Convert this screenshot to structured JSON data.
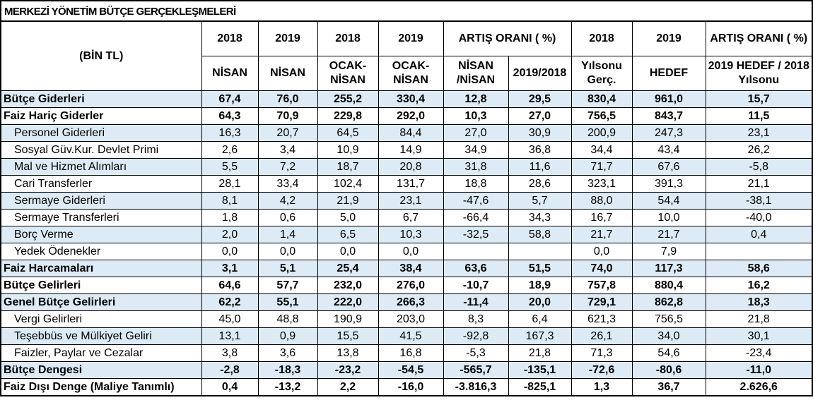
{
  "title": "MERKEZİ YÖNETİM BÜTÇE GERÇEKLEŞMELERİ",
  "table": {
    "unit_label": "(BİN TL)",
    "header_top": [
      "2018",
      "2019",
      "2018",
      "2019",
      "ARTIŞ ORANI ( %)",
      "2018",
      "2019",
      "ARTIŞ ORANI ( %)"
    ],
    "header_bottom": [
      "NİSAN",
      "NİSAN",
      "OCAK-NİSAN",
      "OCAK-NİSAN",
      "NİSAN /NİSAN",
      "2019/2018",
      "Yılsonu Gerç.",
      "HEDEF",
      "2019 HEDEF / 2018 Yılsonu"
    ],
    "rows": [
      [
        "Bütçe Giderleri",
        "67,4",
        "76,0",
        "255,2",
        "330,4",
        "12,8",
        "29,5",
        "830,4",
        "961,0",
        "15,7"
      ],
      [
        "Faiz Hariç Giderler",
        "64,3",
        "70,9",
        "229,8",
        "292,0",
        "10,3",
        "27,0",
        "756,5",
        "843,7",
        "11,5"
      ],
      [
        "Personel Giderleri",
        "16,3",
        "20,7",
        "64,5",
        "84,4",
        "27,0",
        "30,9",
        "200,9",
        "247,3",
        "23,1"
      ],
      [
        "Sosyal Güv.Kur. Devlet Primi",
        "2,6",
        "3,4",
        "10,9",
        "14,9",
        "34,9",
        "36,8",
        "34,4",
        "43,4",
        "26,2"
      ],
      [
        "Mal ve Hizmet Alımları",
        "5,5",
        "7,2",
        "18,7",
        "20,8",
        "31,8",
        "11,6",
        "71,7",
        "67,6",
        "-5,8"
      ],
      [
        "Cari Transferler",
        "28,1",
        "33,4",
        "102,4",
        "131,7",
        "18,8",
        "28,6",
        "323,1",
        "391,3",
        "21,1"
      ],
      [
        "Sermaye Giderleri",
        "8,1",
        "4,2",
        "21,9",
        "23,1",
        "-47,6",
        "5,7",
        "88,0",
        "54,4",
        "-38,1"
      ],
      [
        "Sermaye Transferleri",
        "1,8",
        "0,6",
        "5,0",
        "6,7",
        "-66,4",
        "34,3",
        "16,7",
        "10,0",
        "-40,0"
      ],
      [
        "Borç Verme",
        "2,0",
        "1,4",
        "6,5",
        "10,3",
        "-32,5",
        "58,8",
        "21,7",
        "21,7",
        "0,4"
      ],
      [
        "Yedek Ödenekler",
        "0,0",
        "0,0",
        "0,0",
        "0,0",
        null,
        null,
        "0,0",
        "7,9",
        null
      ],
      [
        "Faiz Harcamaları",
        "3,1",
        "5,1",
        "25,4",
        "38,4",
        "63,6",
        "51,5",
        "74,0",
        "117,3",
        "58,6"
      ],
      [
        "Bütçe Gelirleri",
        "64,6",
        "57,7",
        "232,0",
        "276,0",
        "-10,7",
        "18,9",
        "757,8",
        "880,4",
        "16,2"
      ],
      [
        "Genel Bütçe Gelirleri",
        "62,2",
        "55,1",
        "222,0",
        "266,3",
        "-11,4",
        "20,0",
        "729,1",
        "862,8",
        "18,3"
      ],
      [
        "Vergi Gelirleri",
        "45,0",
        "48,8",
        "190,9",
        "203,0",
        "8,3",
        "6,4",
        "621,3",
        "756,5",
        "21,8"
      ],
      [
        "Teşebbüs ve Mülkiyet Geliri",
        "13,1",
        "0,9",
        "15,5",
        "41,5",
        "-92,8",
        "167,3",
        "26,1",
        "34,0",
        "30,1"
      ],
      [
        "Faizler, Paylar ve Cezalar",
        "3,8",
        "3,6",
        "13,8",
        "16,8",
        "-5,3",
        "21,8",
        "71,3",
        "54,6",
        "-23,4"
      ],
      [
        "Bütçe Dengesi",
        "-2,8",
        "-18,3",
        "-23,2",
        "-54,5",
        "-565,7",
        "-135,1",
        "-72,6",
        "-80,6",
        "-11,0"
      ],
      [
        "Faiz Dışı Denge (Maliye Tanımlı)",
        "0,4",
        "-13,2",
        "2,2",
        "-16,0",
        "-3.816,3",
        "-825,1",
        "1,3",
        "36,7",
        "2.626,6"
      ]
    ]
  }
}
